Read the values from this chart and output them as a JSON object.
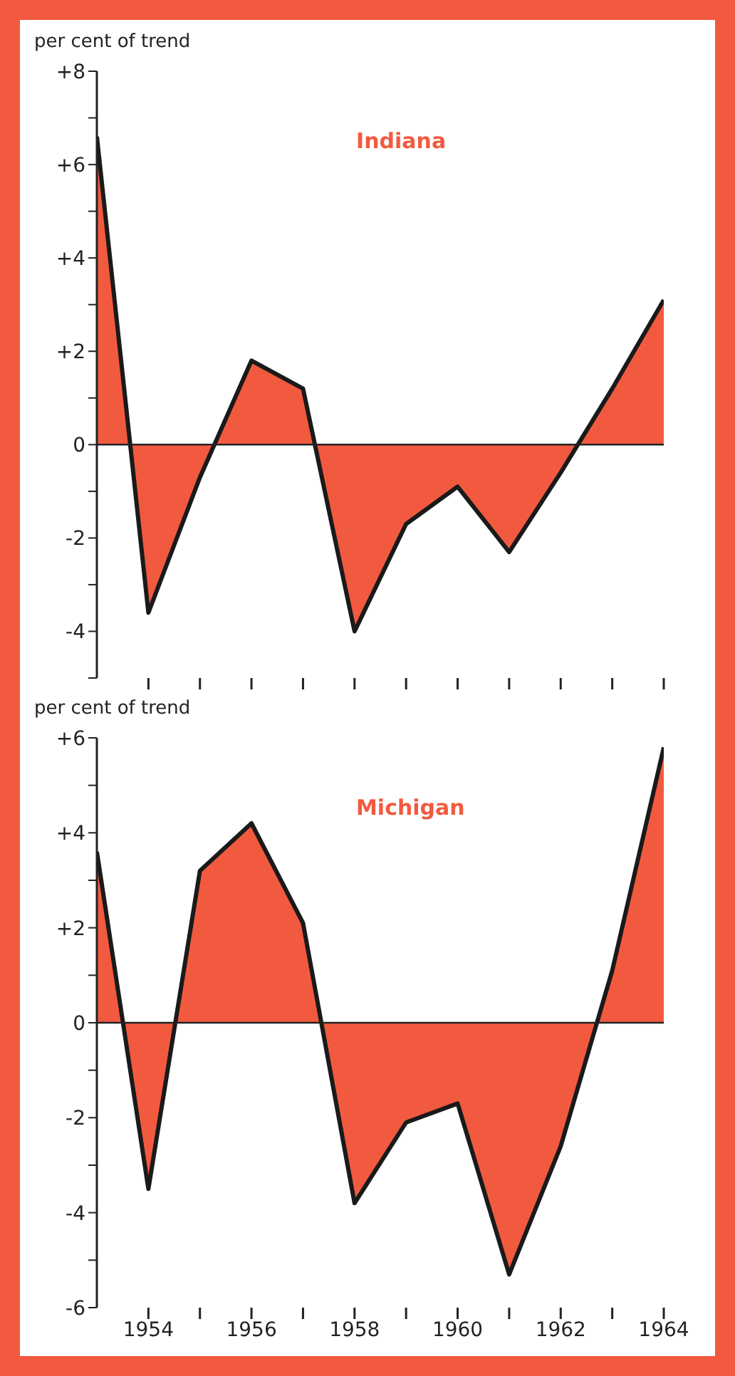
{
  "chart_data": [
    {
      "type": "area",
      "title": "Indiana",
      "ylabel": "per cent of trend",
      "x": [
        1953,
        1954,
        1955,
        1956,
        1957,
        1958,
        1959,
        1960,
        1961,
        1962,
        1963,
        1964
      ],
      "series": [
        {
          "color": "#f25a40",
          "values": [
            6.6,
            -3.6,
            -0.7,
            1.8,
            1.2,
            -4.0,
            -1.7,
            -0.9,
            -2.3,
            -0.6,
            1.2,
            3.1
          ]
        }
      ],
      "xlim": [
        1953,
        1964
      ],
      "xticks": [
        {
          "value": 1954,
          "label": null
        },
        {
          "value": 1955,
          "label": null
        },
        {
          "value": 1956,
          "label": null
        },
        {
          "value": 1957,
          "label": null
        },
        {
          "value": 1958,
          "label": null
        },
        {
          "value": 1959,
          "label": null
        },
        {
          "value": 1960,
          "label": null
        },
        {
          "value": 1961,
          "label": null
        },
        {
          "value": 1962,
          "label": null
        },
        {
          "value": 1963,
          "label": null
        },
        {
          "value": 1964,
          "label": null
        }
      ],
      "ylim": [
        -5,
        8
      ],
      "yticks": [
        {
          "value": -5,
          "label": null
        },
        {
          "value": -4,
          "label": "-4"
        },
        {
          "value": -3,
          "label": null
        },
        {
          "value": -2,
          "label": "-2"
        },
        {
          "value": -1,
          "label": null
        },
        {
          "value": 0,
          "label": "0"
        },
        {
          "value": 1,
          "label": null
        },
        {
          "value": 2,
          "label": "+2"
        },
        {
          "value": 3,
          "label": null
        },
        {
          "value": 4,
          "label": "+4"
        },
        {
          "value": 5,
          "label": null
        },
        {
          "value": 6,
          "label": "+6"
        },
        {
          "value": 7,
          "label": null
        },
        {
          "value": 8,
          "label": "+8"
        }
      ],
      "ref_lines": [
        {
          "axis": "y",
          "value": 0,
          "color": "#222222"
        }
      ],
      "tick_labels": "y",
      "grid": false,
      "legend": false
    },
    {
      "type": "area",
      "title": "Michigan",
      "ylabel": "per cent of trend",
      "x": [
        1953,
        1954,
        1955,
        1956,
        1957,
        1958,
        1959,
        1960,
        1961,
        1962,
        1963,
        1964
      ],
      "series": [
        {
          "color": "#f25a40",
          "values": [
            3.6,
            -3.5,
            3.2,
            4.2,
            2.1,
            -3.8,
            -2.1,
            -1.7,
            -5.3,
            -2.6,
            1.1,
            5.8
          ]
        }
      ],
      "xlim": [
        1953,
        1964
      ],
      "xticks": [
        1954,
        {
          "value": 1955,
          "label": null
        },
        1956,
        {
          "value": 1957,
          "label": null
        },
        1958,
        {
          "value": 1959,
          "label": null
        },
        1960,
        {
          "value": 1961,
          "label": null
        },
        1962,
        {
          "value": 1963,
          "label": null
        },
        1964
      ],
      "ylim": [
        -6,
        6
      ],
      "yticks": [
        {
          "value": -6,
          "label": "-6"
        },
        {
          "value": -5,
          "label": null
        },
        {
          "value": -4,
          "label": "-4"
        },
        {
          "value": -3,
          "label": null
        },
        {
          "value": -2,
          "label": "-2"
        },
        {
          "value": -1,
          "label": null
        },
        {
          "value": 0,
          "label": "0"
        },
        {
          "value": 1,
          "label": null
        },
        {
          "value": 2,
          "label": "+2"
        },
        {
          "value": 3,
          "label": null
        },
        {
          "value": 4,
          "label": "+4"
        },
        {
          "value": 5,
          "label": null
        },
        {
          "value": 6,
          "label": "+6"
        }
      ],
      "ref_lines": [
        {
          "axis": "y",
          "value": 0,
          "color": "#222222"
        }
      ],
      "grid": false,
      "legend": false
    }
  ]
}
